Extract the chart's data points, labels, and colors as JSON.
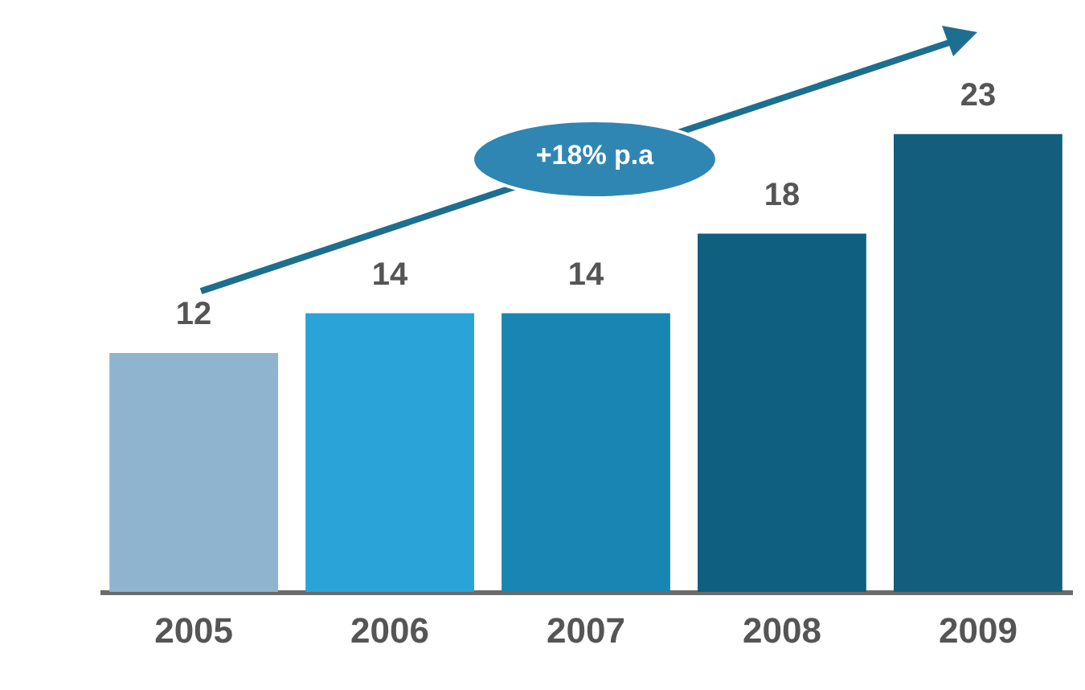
{
  "chart_data": {
    "type": "bar",
    "categories": [
      "2005",
      "2006",
      "2007",
      "2008",
      "2009"
    ],
    "values": [
      12,
      14,
      14,
      18,
      23
    ],
    "colors": [
      "#8fb4cf",
      "#29a3d8",
      "#1886b3",
      "#0f5f80",
      "#135e7c"
    ],
    "data_labels": true,
    "annotations": [
      "+18% p.a"
    ]
  }
}
